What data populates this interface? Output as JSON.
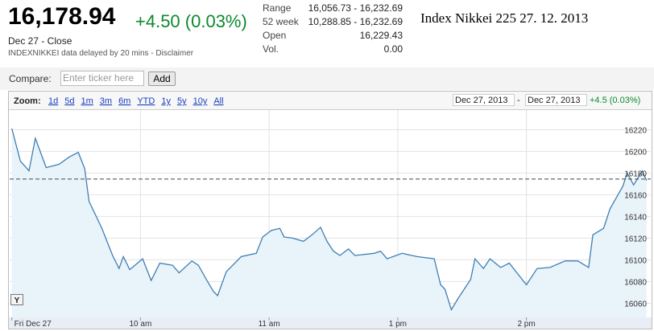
{
  "header": {
    "price": "16,178.94",
    "change": "+4.50 (0.03%)",
    "date_line": "Dec 27 - Close",
    "delay_note": "INDEXNIKKEI data delayed by 20 mins - Disclaimer",
    "caption": "Index Nikkei 225 27. 12. 2013"
  },
  "stats": [
    [
      "Range",
      "16,056.73 - 16,232.69"
    ],
    [
      "52 week",
      "10,288.85 - 16,232.69"
    ],
    [
      "Open",
      "16,229.43"
    ],
    [
      "Vol.",
      "0.00"
    ]
  ],
  "compare": {
    "label": "Compare:",
    "placeholder": "Enter ticker here",
    "button": "Add"
  },
  "zoom": {
    "label": "Zoom:",
    "options": [
      "1d",
      "5d",
      "1m",
      "3m",
      "6m",
      "YTD",
      "1y",
      "5y",
      "10y",
      "All"
    ],
    "from": "Dec 27, 2013",
    "separator": "-",
    "to": "Dec 27, 2013",
    "change": "+4.5 (0.03%)"
  },
  "y_button": "Y",
  "chart_data": {
    "type": "area",
    "xlim": [
      -1,
      298
    ],
    "ylim": [
      16047,
      16238
    ],
    "xticks": [
      {
        "value": 0,
        "label": "Fri Dec 27"
      },
      {
        "value": 60,
        "label": "10 am"
      },
      {
        "value": 120,
        "label": "11 am"
      },
      {
        "value": 180,
        "label": "1 pm"
      },
      {
        "value": 240,
        "label": "2 pm"
      }
    ],
    "yticks": [
      16060,
      16080,
      16100,
      16120,
      16140,
      16160,
      16180,
      16200,
      16220
    ],
    "reference_line": 16174.44,
    "grid": true,
    "series": [
      {
        "color": "#3f7fb3",
        "fill": "#e9f3fa",
        "x": [
          0,
          4,
          8,
          11,
          16,
          22,
          27,
          31,
          34,
          36,
          42,
          47,
          50,
          52,
          55,
          61,
          65,
          69,
          75,
          78,
          84,
          87,
          91,
          94,
          96,
          100,
          107,
          114,
          117,
          121,
          125,
          127,
          131,
          136,
          140,
          144,
          147,
          150,
          153,
          157,
          160,
          169,
          172,
          175,
          182,
          189,
          197,
          200,
          202,
          205,
          208,
          214,
          216,
          220,
          223,
          228,
          232,
          240,
          245,
          251,
          258,
          264,
          269,
          271,
          276,
          279,
          285,
          287,
          290,
          294,
          296
        ],
        "values": [
          16221,
          16191,
          16182,
          16212,
          16185,
          16188,
          16195,
          16199,
          16184,
          16154,
          16129,
          16104,
          16092,
          16103,
          16091,
          16101,
          16081,
          16097,
          16095,
          16088,
          16099,
          16095,
          16081,
          16071,
          16067,
          16089,
          16103,
          16106,
          16121,
          16127,
          16129,
          16121,
          16120,
          16117,
          16123,
          16130,
          16117,
          16108,
          16104,
          16110,
          16104,
          16106,
          16108,
          16101,
          16106,
          16103,
          16101,
          16077,
          16073,
          16054,
          16064,
          16082,
          16101,
          16092,
          16101,
          16093,
          16097,
          16077,
          16092,
          16093,
          16099,
          16099,
          16093,
          16123,
          16129,
          16147,
          16168,
          16180,
          16169,
          16182,
          16173
        ]
      }
    ]
  }
}
